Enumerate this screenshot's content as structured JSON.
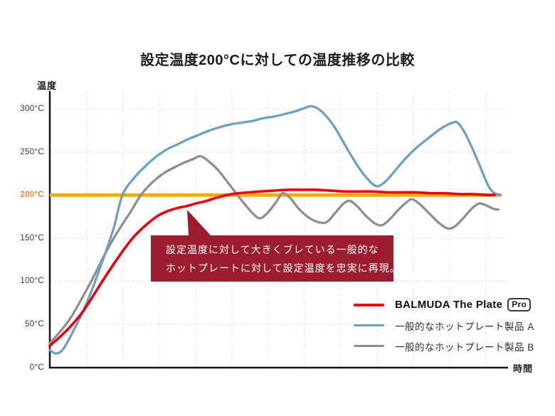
{
  "chart_data": {
    "type": "line",
    "title": "設定温度200°Cに対しての温度推移の比較",
    "x_axis": {
      "label": "時間",
      "ticks": []
    },
    "y_axis": {
      "label": "温度",
      "min": 0,
      "max": 300,
      "ticks": [
        {
          "label": "0°C",
          "value": 0
        },
        {
          "label": "50°C",
          "value": 50
        },
        {
          "label": "100°C",
          "value": 100
        },
        {
          "label": "150°C",
          "value": 150
        },
        {
          "label": "200°C",
          "value": 200
        },
        {
          "label": "250°C",
          "value": 250
        },
        {
          "label": "300°C",
          "value": 300
        }
      ]
    },
    "grid": true,
    "grid_color": "#DCDCDC",
    "legend_position": "bottom-right",
    "x_scale": "relative-time-0-100",
    "target_line": {
      "value": 200,
      "label": "200°C",
      "color": "#F8AC00"
    },
    "series": [
      {
        "id": "balmuda-pro",
        "name": "BALMUDA The Plate Pro",
        "label": "BALMUDA The Plate",
        "badge": "Pro",
        "color": "#E60012",
        "points": [
          [
            0,
            25
          ],
          [
            2.4,
            36
          ],
          [
            4.7,
            48
          ],
          [
            7.1,
            63
          ],
          [
            9.5,
            82
          ],
          [
            11.8,
            101
          ],
          [
            14.2,
            120
          ],
          [
            16.6,
            138
          ],
          [
            18.9,
            153
          ],
          [
            21.3,
            165
          ],
          [
            23.7,
            175
          ],
          [
            26,
            181
          ],
          [
            28.4,
            185
          ],
          [
            30.3,
            187
          ],
          [
            32.3,
            190
          ],
          [
            34.7,
            193
          ],
          [
            37.1,
            197
          ],
          [
            39.4,
            200
          ],
          [
            41.8,
            202
          ],
          [
            44.2,
            203
          ],
          [
            46.5,
            204
          ],
          [
            49.7,
            205
          ],
          [
            52.8,
            206
          ],
          [
            56,
            206
          ],
          [
            59.1,
            206
          ],
          [
            62.3,
            205
          ],
          [
            65.5,
            204
          ],
          [
            68.6,
            204
          ],
          [
            71.8,
            204
          ],
          [
            74.9,
            203
          ],
          [
            78.1,
            203
          ],
          [
            81.2,
            203
          ],
          [
            84.4,
            202
          ],
          [
            87.5,
            202
          ],
          [
            90.7,
            201
          ],
          [
            93.8,
            201
          ],
          [
            97,
            200
          ],
          [
            98.6,
            200
          ]
        ]
      },
      {
        "id": "generic-a",
        "name": "一般的なホットプレート製品 A",
        "label": "一般的なホットプレート製品 A",
        "color": "#6FA0C0",
        "points": [
          [
            0,
            20
          ],
          [
            1.3,
            16
          ],
          [
            2.8,
            20
          ],
          [
            4.7,
            37
          ],
          [
            7.1,
            62
          ],
          [
            9.5,
            92
          ],
          [
            11.8,
            125
          ],
          [
            14.2,
            162
          ],
          [
            16.1,
            200
          ],
          [
            18.9,
            221
          ],
          [
            21.3,
            234
          ],
          [
            23.7,
            245
          ],
          [
            26,
            253
          ],
          [
            28.4,
            259
          ],
          [
            30.8,
            265
          ],
          [
            33.1,
            270
          ],
          [
            35.5,
            275
          ],
          [
            37.9,
            279
          ],
          [
            40.2,
            282
          ],
          [
            42.6,
            284
          ],
          [
            45,
            286
          ],
          [
            47.3,
            289
          ],
          [
            49.7,
            291
          ],
          [
            52.1,
            294
          ],
          [
            54.4,
            297
          ],
          [
            56.5,
            301
          ],
          [
            57.9,
            303
          ],
          [
            59.5,
            300
          ],
          [
            61.2,
            292
          ],
          [
            63.1,
            279
          ],
          [
            65,
            262
          ],
          [
            66.9,
            245
          ],
          [
            68.6,
            231
          ],
          [
            70.2,
            220
          ],
          [
            71.5,
            213
          ],
          [
            72.6,
            210
          ],
          [
            73.8,
            213
          ],
          [
            75.4,
            221
          ],
          [
            77.3,
            233
          ],
          [
            79.7,
            247
          ],
          [
            82,
            258
          ],
          [
            84.4,
            268
          ],
          [
            86.4,
            276
          ],
          [
            88,
            281
          ],
          [
            89.4,
            284
          ],
          [
            90.4,
            284
          ],
          [
            91.8,
            274
          ],
          [
            93.4,
            257
          ],
          [
            95,
            238
          ],
          [
            96.4,
            220
          ],
          [
            97.5,
            208
          ],
          [
            98.6,
            202
          ],
          [
            100,
            200
          ]
        ]
      },
      {
        "id": "generic-b",
        "name": "一般的なホットプレート製品 B",
        "label": "一般的なホットプレート製品 B",
        "color": "#8E8E8E",
        "points": [
          [
            0,
            28
          ],
          [
            2.4,
            42
          ],
          [
            4.7,
            58
          ],
          [
            7.1,
            80
          ],
          [
            9.5,
            103
          ],
          [
            11.8,
            127
          ],
          [
            14.2,
            150
          ],
          [
            16.1,
            166
          ],
          [
            18.1,
            182
          ],
          [
            20.2,
            200
          ],
          [
            22.4,
            213
          ],
          [
            24.9,
            224
          ],
          [
            27.6,
            232
          ],
          [
            30,
            238
          ],
          [
            31.9,
            242
          ],
          [
            33.4,
            245
          ],
          [
            35,
            240
          ],
          [
            37.1,
            230
          ],
          [
            39.1,
            217
          ],
          [
            41.3,
            202
          ],
          [
            43.4,
            188
          ],
          [
            45.3,
            177
          ],
          [
            46.7,
            173
          ],
          [
            48.4,
            180
          ],
          [
            50.2,
            192
          ],
          [
            51.6,
            202
          ],
          [
            53.2,
            197
          ],
          [
            55.2,
            184
          ],
          [
            57.6,
            173
          ],
          [
            59.9,
            168
          ],
          [
            61.5,
            169
          ],
          [
            63.4,
            180
          ],
          [
            65.1,
            190
          ],
          [
            66.6,
            193
          ],
          [
            68.3,
            186
          ],
          [
            70.2,
            175
          ],
          [
            72.1,
            167
          ],
          [
            73.7,
            165
          ],
          [
            75.4,
            172
          ],
          [
            77.3,
            183
          ],
          [
            79.2,
            192
          ],
          [
            80.4,
            195
          ],
          [
            82.3,
            188
          ],
          [
            84.4,
            177
          ],
          [
            86.4,
            167
          ],
          [
            88.3,
            161
          ],
          [
            89.9,
            164
          ],
          [
            91.8,
            174
          ],
          [
            93.5,
            184
          ],
          [
            95.1,
            190
          ],
          [
            96.7,
            188
          ],
          [
            98.3,
            184
          ],
          [
            99.4,
            183
          ]
        ]
      }
    ],
    "annotation": {
      "lines": [
        "設定温度に対して大きくブレている一般的な",
        "ホットプレートに対して設定温度を忠実に再現。"
      ],
      "color": "#9C1D2E",
      "text_color": "#FFFFFF"
    }
  }
}
